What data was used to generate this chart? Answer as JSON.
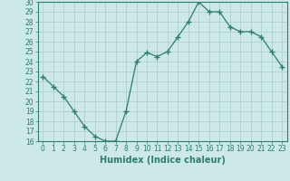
{
  "x": [
    0,
    1,
    2,
    3,
    4,
    5,
    6,
    7,
    8,
    9,
    10,
    11,
    12,
    13,
    14,
    15,
    16,
    17,
    18,
    19,
    20,
    21,
    22,
    23
  ],
  "y": [
    22.5,
    21.5,
    20.5,
    19.0,
    17.5,
    16.5,
    16.0,
    16.0,
    19.0,
    24.0,
    24.9,
    24.5,
    25.0,
    26.5,
    28.0,
    30.0,
    29.0,
    29.0,
    27.5,
    27.0,
    27.0,
    26.5,
    25.0,
    23.5
  ],
  "line_color": "#2e7d6e",
  "bg_color": "#cce8e8",
  "grid_color": "#aacccc",
  "xlabel": "Humidex (Indice chaleur)",
  "ylim": [
    16,
    30
  ],
  "xlim_min": -0.5,
  "xlim_max": 23.5,
  "yticks": [
    16,
    17,
    18,
    19,
    20,
    21,
    22,
    23,
    24,
    25,
    26,
    27,
    28,
    29,
    30
  ],
  "xticks": [
    0,
    1,
    2,
    3,
    4,
    5,
    6,
    7,
    8,
    9,
    10,
    11,
    12,
    13,
    14,
    15,
    16,
    17,
    18,
    19,
    20,
    21,
    22,
    23
  ],
  "xlabel_fontsize": 7,
  "tick_fontsize": 5.5,
  "marker": "+",
  "markersize": 4,
  "linewidth": 0.9
}
